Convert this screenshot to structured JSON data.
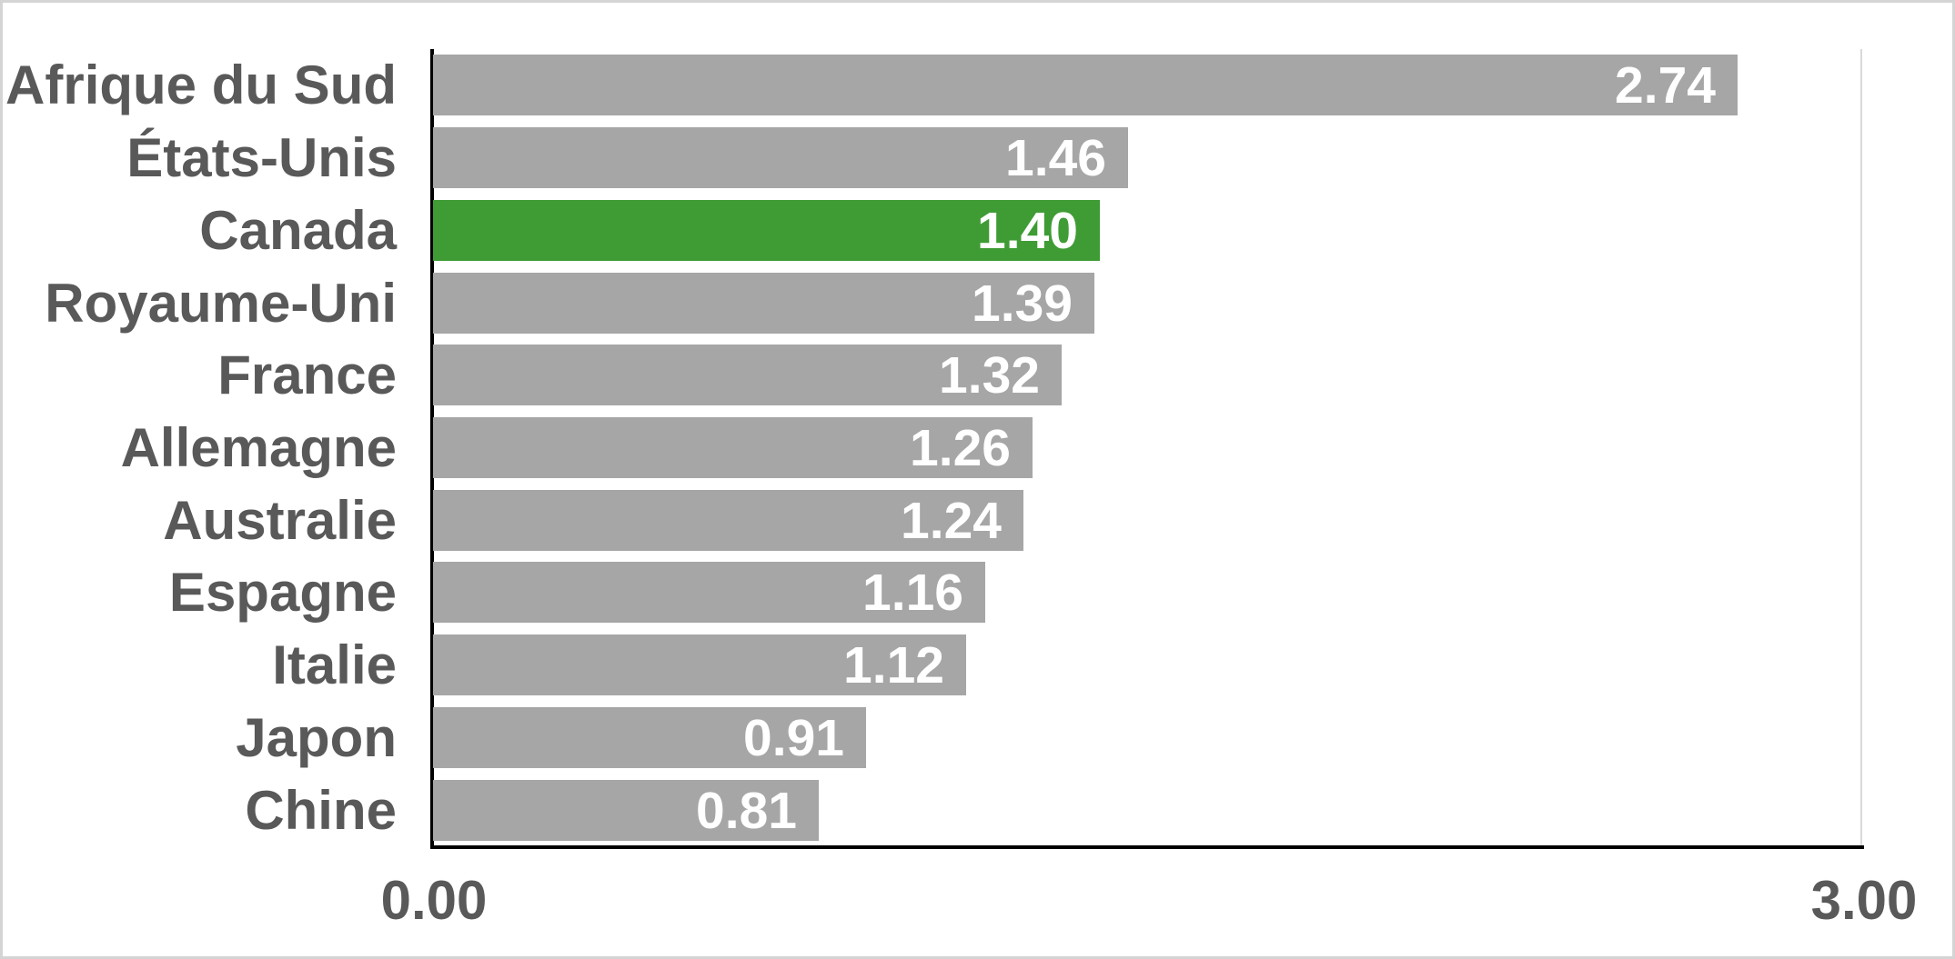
{
  "chart_data": {
    "type": "bar",
    "orientation": "horizontal",
    "categories": [
      "Afrique du Sud",
      "États-Unis",
      "Canada",
      "Royaume-Uni",
      "France",
      "Allemagne",
      "Australie",
      "Espagne",
      "Italie",
      "Japon",
      "Chine"
    ],
    "values": [
      2.74,
      1.46,
      1.4,
      1.39,
      1.32,
      1.26,
      1.24,
      1.16,
      1.12,
      0.91,
      0.81
    ],
    "value_labels": [
      "2.74",
      "1.46",
      "1.40",
      "1.39",
      "1.32",
      "1.26",
      "1.24",
      "1.16",
      "1.12",
      "0.91",
      "0.81"
    ],
    "highlight_index": 2,
    "highlight_category": "Canada",
    "xlim": [
      0,
      3
    ],
    "x_ticks": [
      "0.00",
      "3.00"
    ],
    "legend": "none",
    "grid": "single vertical gridline at 3.00",
    "colors": {
      "bar": "#a6a6a6",
      "highlight_bar": "#3f9c35",
      "value_label": "#ffffff",
      "category_label": "#595959",
      "tick_label": "#595959",
      "axis_line": "#000000",
      "gridline": "#d9d9d9",
      "background": "#ffffff",
      "frame_border": "#d4d4d4"
    }
  }
}
